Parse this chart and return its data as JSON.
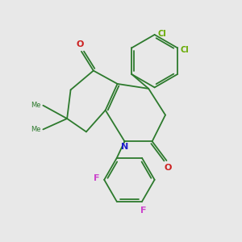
{
  "background_color": "#e8e8e8",
  "bond_color": "#2d7a2d",
  "N_color": "#2020cc",
  "O_color": "#cc2020",
  "F_color": "#cc44cc",
  "Cl_color": "#66aa00",
  "figsize": [
    3.0,
    3.0
  ],
  "dpi": 100,
  "lw": 1.3,
  "xlim": [
    0,
    10
  ],
  "ylim": [
    0,
    10
  ]
}
